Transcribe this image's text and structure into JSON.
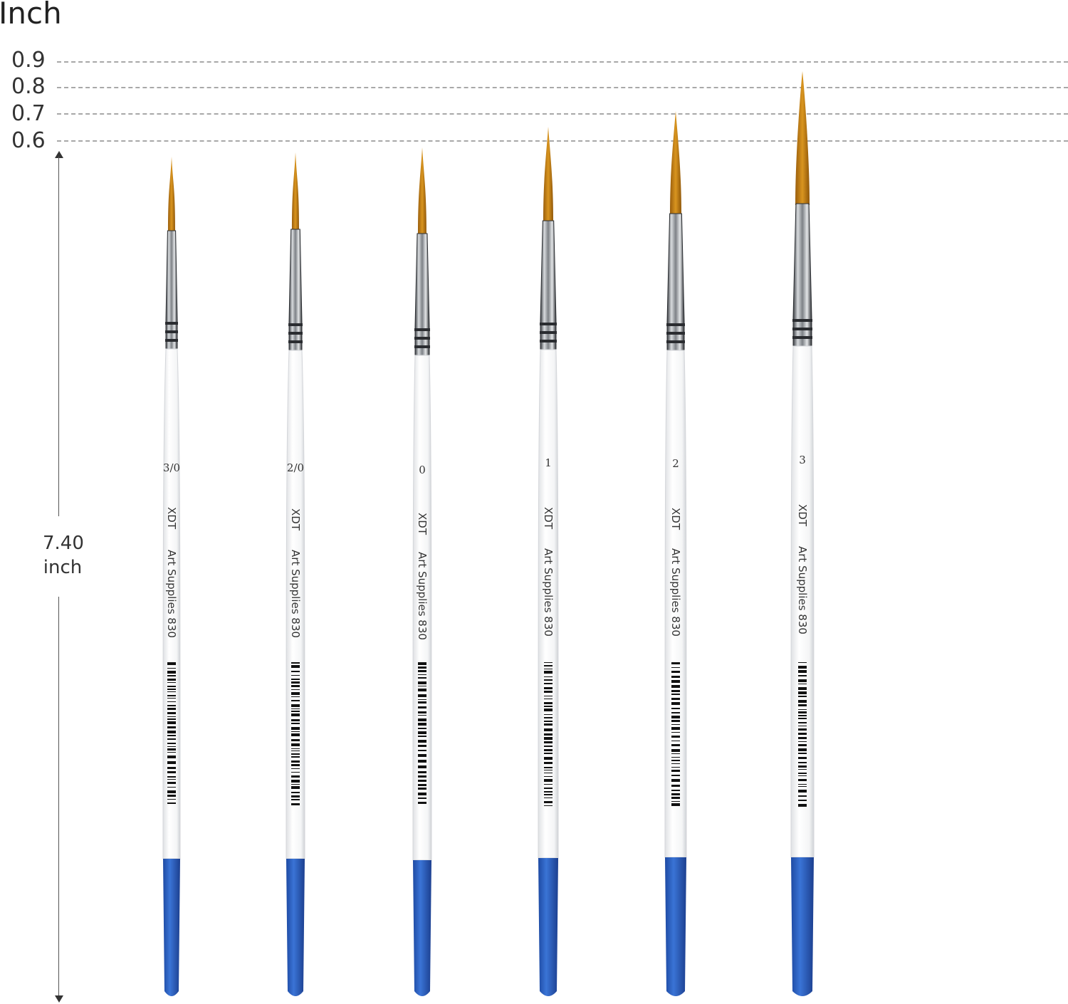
{
  "scale": {
    "unit_title": "Inch",
    "ticks": [
      "0.9",
      "0.8",
      "0.7",
      "0.6"
    ]
  },
  "length": {
    "value": "7.40",
    "unit": "inch"
  },
  "brushes": [
    {
      "size": "3/0",
      "brand": "XDT",
      "model": "Art  Supplies 830"
    },
    {
      "size": "2/0",
      "brand": "XDT",
      "model": "Art  Supplies 830"
    },
    {
      "size": "0",
      "brand": "XDT",
      "model": "Art  Supplies 830"
    },
    {
      "size": "1",
      "brand": "XDT",
      "model": "Art  Supplies 830"
    },
    {
      "size": "2",
      "brand": "XDT",
      "model": "Art  Supplies 830"
    },
    {
      "size": "3",
      "brand": "XDT",
      "model": "Art  Supplies 830"
    }
  ],
  "colors": {
    "bristle": "#c9861a",
    "ferrule": "#9a9ea3",
    "handle": "#ffffff",
    "tip": "#2f63c4"
  }
}
